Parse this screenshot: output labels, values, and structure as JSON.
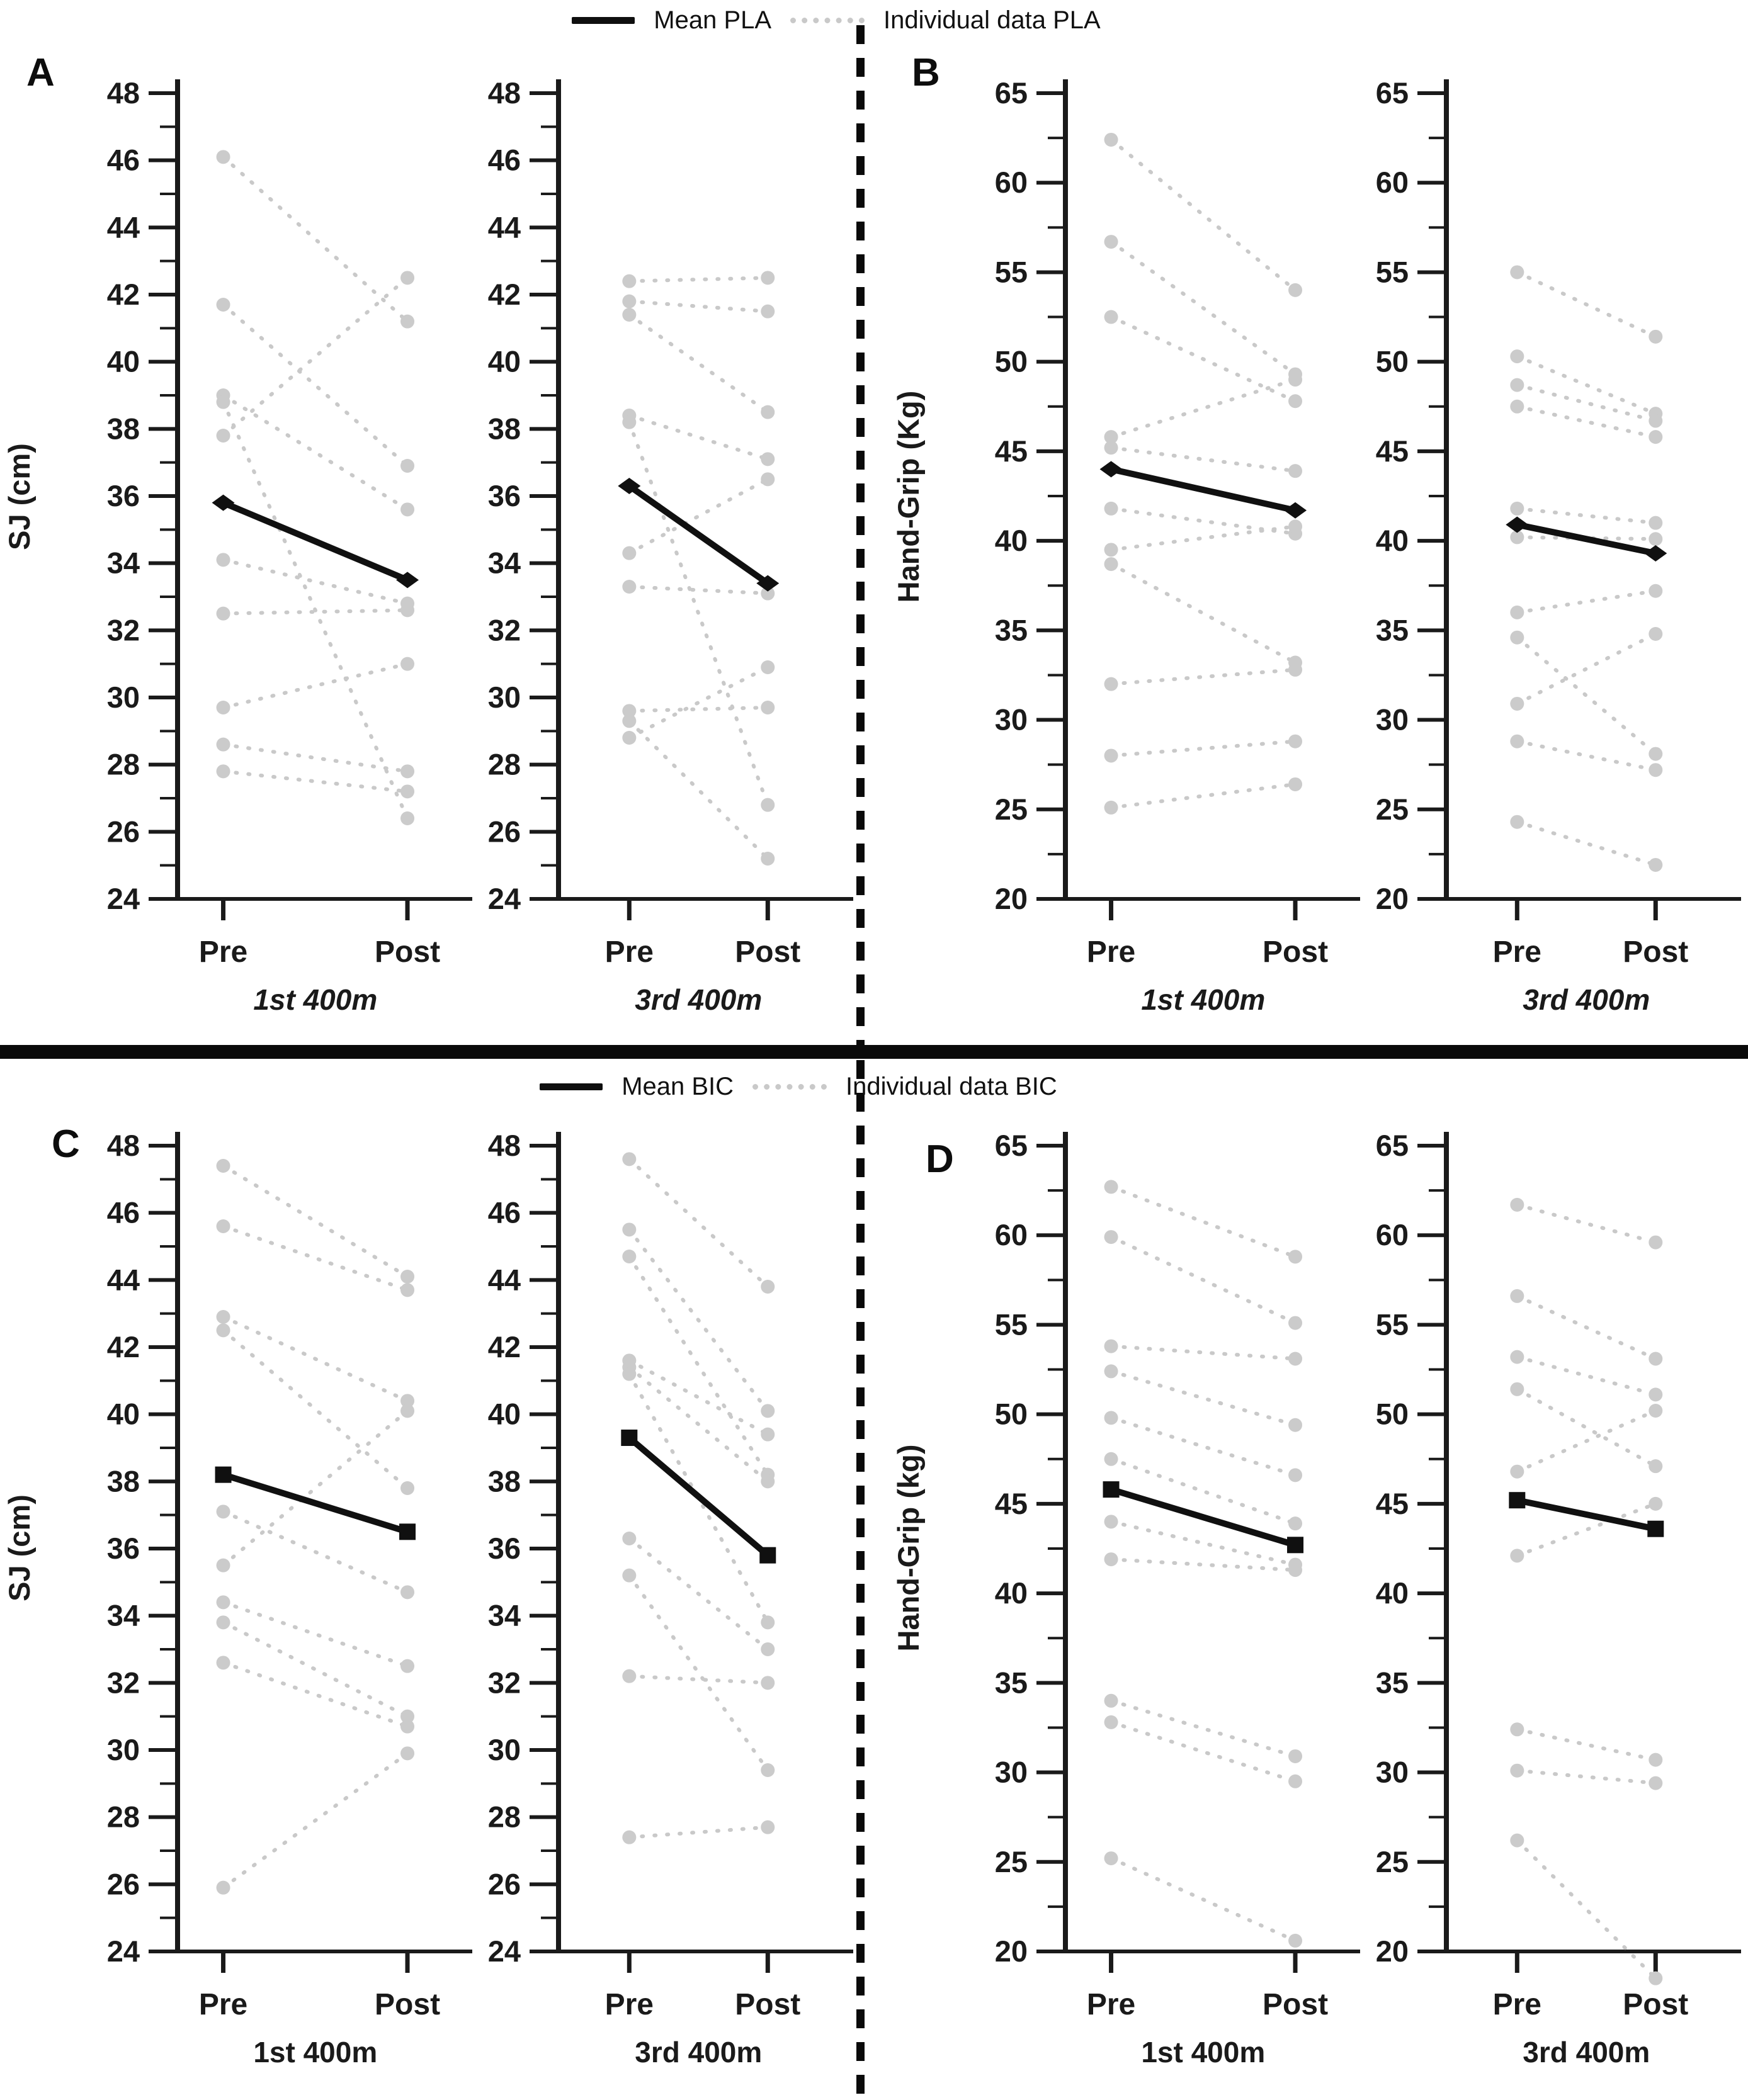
{
  "legends": {
    "pla": {
      "mean_label": "Mean PLA",
      "individual_label": "Individual data PLA"
    },
    "bic": {
      "mean_label": "Mean BIC",
      "individual_label": "Individual data BIC"
    }
  },
  "colors": {
    "mean": "#101010",
    "individual": "#c9c9c9",
    "individual_dot": "#cbcbcb",
    "axis": "#1a1a1a",
    "text": "#1a1a1a",
    "divider": "#0a0a0a"
  },
  "x_categories": [
    "Pre",
    "Post"
  ],
  "chart_data": [
    {
      "type": "paired-line",
      "panel": "A",
      "condition": "PLA",
      "ylabel": "SJ (cm)",
      "ylim": [
        24,
        48
      ],
      "ytick_step": 2,
      "mean_marker": "diamond",
      "legend_ref": "pla",
      "subplots": [
        {
          "caption": "1st 400m",
          "caption_italic": true,
          "x_categories": [
            "Pre",
            "Post"
          ],
          "mean": [
            35.8,
            33.5
          ],
          "pairs": [
            [
              46.1,
              41.2
            ],
            [
              41.7,
              36.9
            ],
            [
              39.0,
              35.6
            ],
            [
              38.8,
              26.4
            ],
            [
              37.8,
              42.5
            ],
            [
              34.1,
              32.8
            ],
            [
              32.5,
              32.6
            ],
            [
              29.7,
              31.0
            ],
            [
              28.6,
              27.8
            ],
            [
              27.8,
              27.2
            ]
          ]
        },
        {
          "caption": "3rd 400m",
          "caption_italic": true,
          "x_categories": [
            "Pre",
            "Post"
          ],
          "mean": [
            36.3,
            33.4
          ],
          "pairs": [
            [
              42.4,
              42.5
            ],
            [
              41.8,
              41.5
            ],
            [
              41.4,
              38.5
            ],
            [
              38.4,
              37.1
            ],
            [
              38.2,
              26.8
            ],
            [
              34.3,
              36.5
            ],
            [
              33.3,
              33.1
            ],
            [
              29.6,
              29.7
            ],
            [
              28.8,
              30.9
            ],
            [
              29.3,
              25.2
            ]
          ]
        }
      ]
    },
    {
      "type": "paired-line",
      "panel": "B",
      "condition": "PLA",
      "ylabel": "Hand-Grip (Kg)",
      "ylim": [
        20,
        65
      ],
      "ytick_step": 5,
      "mean_marker": "diamond",
      "legend_ref": "pla",
      "subplots": [
        {
          "caption": "1st 400m",
          "caption_italic": true,
          "x_categories": [
            "Pre",
            "Post"
          ],
          "mean": [
            44.0,
            41.7
          ],
          "pairs": [
            [
              62.4,
              54.0
            ],
            [
              56.7,
              49.3
            ],
            [
              52.5,
              47.8
            ],
            [
              45.8,
              49.0
            ],
            [
              45.2,
              43.9
            ],
            [
              41.8,
              40.4
            ],
            [
              39.5,
              40.8
            ],
            [
              38.7,
              33.2
            ],
            [
              32.0,
              32.8
            ],
            [
              28.0,
              28.8
            ],
            [
              25.1,
              26.4
            ]
          ]
        },
        {
          "caption": "3rd 400m",
          "caption_italic": true,
          "x_categories": [
            "Pre",
            "Post"
          ],
          "mean": [
            40.9,
            39.3
          ],
          "pairs": [
            [
              55.0,
              51.4
            ],
            [
              50.3,
              47.1
            ],
            [
              48.7,
              46.7
            ],
            [
              47.5,
              45.8
            ],
            [
              41.8,
              41.0
            ],
            [
              40.2,
              40.1
            ],
            [
              36.0,
              37.2
            ],
            [
              34.6,
              28.1
            ],
            [
              30.9,
              34.8
            ],
            [
              28.8,
              27.2
            ],
            [
              24.3,
              21.9
            ]
          ]
        }
      ]
    },
    {
      "type": "paired-line",
      "panel": "C",
      "condition": "BIC",
      "ylabel": "SJ (cm)",
      "ylim": [
        24,
        48
      ],
      "ytick_step": 2,
      "mean_marker": "square",
      "legend_ref": "bic",
      "subplots": [
        {
          "caption": "1st 400m",
          "caption_italic": false,
          "x_categories": [
            "Pre",
            "Post"
          ],
          "mean": [
            38.2,
            36.5
          ],
          "pairs": [
            [
              47.4,
              44.1
            ],
            [
              45.6,
              43.7
            ],
            [
              42.9,
              40.4
            ],
            [
              42.5,
              37.8
            ],
            [
              37.1,
              34.7
            ],
            [
              35.5,
              40.1
            ],
            [
              34.4,
              32.5
            ],
            [
              33.8,
              31.0
            ],
            [
              32.6,
              30.7
            ],
            [
              25.9,
              29.9
            ]
          ]
        },
        {
          "caption": "3rd 400m",
          "caption_italic": false,
          "x_categories": [
            "Pre",
            "Post"
          ],
          "mean": [
            39.3,
            35.8
          ],
          "pairs": [
            [
              47.6,
              43.8
            ],
            [
              45.5,
              40.1
            ],
            [
              44.7,
              38.2
            ],
            [
              41.6,
              39.4
            ],
            [
              41.4,
              38.0
            ],
            [
              41.2,
              33.8
            ],
            [
              36.3,
              33.0
            ],
            [
              35.2,
              29.4
            ],
            [
              32.2,
              32.0
            ],
            [
              27.4,
              27.7
            ]
          ]
        }
      ]
    },
    {
      "type": "paired-line",
      "panel": "D",
      "condition": "BIC",
      "ylabel": "Hand-Grip (kg)",
      "ylim": [
        20,
        65
      ],
      "ytick_step": 5,
      "mean_marker": "square",
      "legend_ref": "bic",
      "subplots": [
        {
          "caption": "1st 400m",
          "caption_italic": false,
          "x_categories": [
            "Pre",
            "Post"
          ],
          "mean": [
            45.8,
            42.7
          ],
          "pairs": [
            [
              62.7,
              58.8
            ],
            [
              59.9,
              55.1
            ],
            [
              53.8,
              53.1
            ],
            [
              52.4,
              49.4
            ],
            [
              49.8,
              46.6
            ],
            [
              47.5,
              43.9
            ],
            [
              44.0,
              41.6
            ],
            [
              41.9,
              41.3
            ],
            [
              34.0,
              30.9
            ],
            [
              32.8,
              29.5
            ],
            [
              25.2,
              20.6
            ]
          ]
        },
        {
          "caption": "3rd 400m",
          "caption_italic": false,
          "x_categories": [
            "Pre",
            "Post"
          ],
          "mean": [
            45.2,
            43.6
          ],
          "pairs": [
            [
              61.7,
              59.6
            ],
            [
              56.6,
              53.1
            ],
            [
              53.2,
              51.1
            ],
            [
              51.4,
              47.1
            ],
            [
              46.8,
              50.2
            ],
            [
              42.1,
              45.0
            ],
            [
              32.4,
              30.7
            ],
            [
              30.1,
              29.4
            ],
            [
              26.2,
              18.5
            ]
          ]
        }
      ]
    }
  ]
}
